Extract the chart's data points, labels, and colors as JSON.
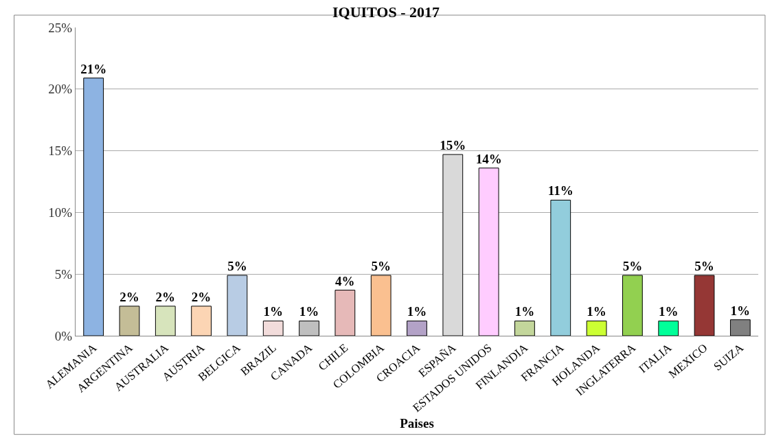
{
  "chart_data": {
    "type": "bar",
    "title": "IQUITOS - 2017",
    "xlabel": "Paises",
    "categories": [
      "ALEMANIA",
      "ARGENTINA",
      "AUSTRALIA",
      "AUSTRIA",
      "BELGICA",
      "BRAZIL",
      "CANADA",
      "CHILE",
      "COLOMBIA",
      "CROACIA",
      "ESPAÑA",
      "ESTADOS UNIDOS",
      "FINLANDIA",
      "FRANCIA",
      "HOLANDA",
      "INGLATERRA",
      "ITALIA",
      "MEXICO",
      "SUIZA"
    ],
    "values": [
      20.9,
      2.4,
      2.4,
      2.4,
      4.9,
      1.2,
      1.2,
      3.7,
      4.9,
      1.2,
      14.7,
      13.6,
      1.2,
      11.0,
      1.2,
      4.9,
      1.2,
      4.9,
      1.3
    ],
    "value_labels": [
      "21%",
      "2%",
      "2%",
      "2%",
      "5%",
      "1%",
      "1%",
      "4%",
      "5%",
      "1%",
      "15%",
      "14%",
      "1%",
      "11%",
      "1%",
      "5%",
      "1%",
      "5%",
      "1%"
    ],
    "colors": [
      "#8db3e2",
      "#c4bd97",
      "#d7e4bc",
      "#fcd5b4",
      "#b8cce4",
      "#f2dcdb",
      "#bfbfbf",
      "#e6b9b8",
      "#fac090",
      "#b3a2c7",
      "#d9d9d9",
      "#ffccff",
      "#c3d69b",
      "#92cddc",
      "#ccff33",
      "#92d050",
      "#00ff99",
      "#953735",
      "#808080"
    ],
    "ylim": [
      0,
      25
    ],
    "yticks": [
      {
        "value": 0,
        "label": "0%"
      },
      {
        "value": 5,
        "label": "5%"
      },
      {
        "value": 10,
        "label": "10%"
      },
      {
        "value": 15,
        "label": "15%"
      },
      {
        "value": 20,
        "label": "20%"
      },
      {
        "value": 25,
        "label": "25%"
      }
    ],
    "grid": "y"
  }
}
